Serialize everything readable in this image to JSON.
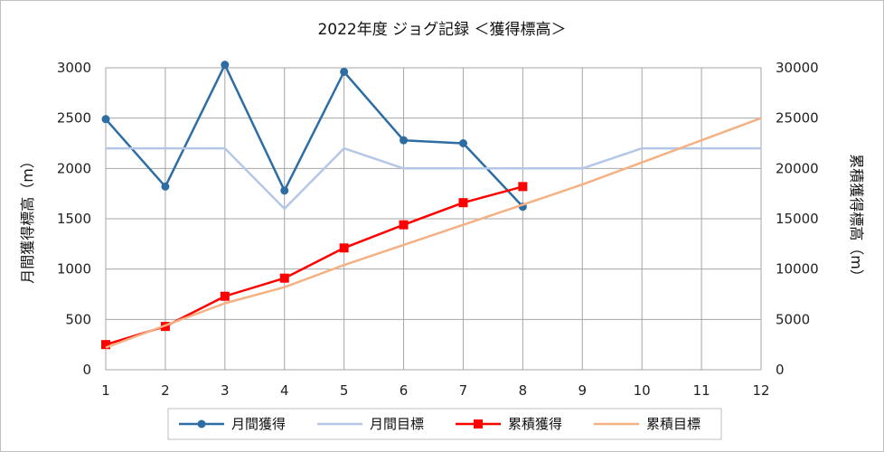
{
  "chart_data": {
    "type": "line",
    "title": "2022年度 ジョグ記録 ＜獲得標高＞",
    "x": [
      1,
      2,
      3,
      4,
      5,
      6,
      7,
      8,
      9,
      10,
      11,
      12
    ],
    "xlim": [
      1,
      12
    ],
    "ylabel_left": "月間獲得標高（m）",
    "ylabel_right": "累積獲得標高（m）",
    "ylim_left": [
      0,
      3000
    ],
    "ylim_right": [
      0,
      30000
    ],
    "yticks_left": [
      0,
      500,
      1000,
      1500,
      2000,
      2500,
      3000
    ],
    "yticks_right": [
      0,
      5000,
      10000,
      15000,
      20000,
      25000,
      30000
    ],
    "grid": true,
    "legend_position": "bottom",
    "series": [
      {
        "name": "月間獲得",
        "axis": "left",
        "color": "#2e6da4",
        "marker": "circle",
        "x": [
          1,
          2,
          3,
          4,
          5,
          6,
          7,
          8
        ],
        "values": [
          2490,
          1820,
          3030,
          1780,
          2960,
          2280,
          2250,
          1620
        ]
      },
      {
        "name": "月間目標",
        "axis": "left",
        "color": "#b4c7e7",
        "marker": "none",
        "x": [
          1,
          2,
          3,
          4,
          5,
          6,
          7,
          8,
          9,
          10,
          11,
          12
        ],
        "values": [
          2200,
          2200,
          2200,
          1600,
          2200,
          2000,
          2000,
          2000,
          2000,
          2200,
          2200,
          2200
        ]
      },
      {
        "name": "累積獲得",
        "axis": "right",
        "color": "#ff0000",
        "marker": "square",
        "x": [
          1,
          2,
          3,
          4,
          5,
          6,
          7,
          8
        ],
        "values": [
          2500,
          4300,
          7300,
          9100,
          12100,
          14400,
          16600,
          18200
        ]
      },
      {
        "name": "累積目標",
        "axis": "right",
        "color": "#f4b183",
        "marker": "none",
        "x": [
          1,
          2,
          3,
          4,
          5,
          6,
          7,
          8,
          9,
          10,
          11,
          12
        ],
        "values": [
          2200,
          4400,
          6600,
          8200,
          10400,
          12400,
          14400,
          16400,
          18400,
          20600,
          22800,
          25000
        ]
      }
    ]
  }
}
